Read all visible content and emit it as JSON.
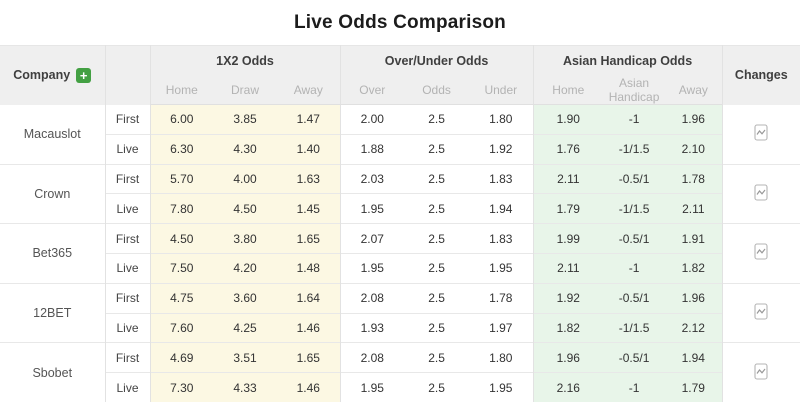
{
  "title": "Live Odds Comparison",
  "table": {
    "company_header": "Company",
    "add_button_label": "+",
    "changes_header": "Changes",
    "groups": [
      {
        "label": "1X2 Odds",
        "subs": [
          "Home",
          "Draw",
          "Away"
        ]
      },
      {
        "label": "Over/Under Odds",
        "subs": [
          "Over",
          "Odds",
          "Under"
        ]
      },
      {
        "label": "Asian Handicap Odds",
        "subs": [
          "Home",
          "Asian Handicap",
          "Away"
        ]
      }
    ],
    "changes_icon": "trend-chart-icon",
    "companies": [
      {
        "name": "Macauslot",
        "rows": [
          {
            "type": "First",
            "x12": [
              "6.00",
              "3.85",
              "1.47"
            ],
            "ou": [
              "2.00",
              "2.5",
              "1.80"
            ],
            "ah": [
              "1.90",
              "-1",
              "1.96"
            ]
          },
          {
            "type": "Live",
            "x12": [
              "6.30",
              "4.30",
              "1.40"
            ],
            "ou": [
              "1.88",
              "2.5",
              "1.92"
            ],
            "ah": [
              "1.76",
              "-1/1.5",
              "2.10"
            ]
          }
        ]
      },
      {
        "name": "Crown",
        "rows": [
          {
            "type": "First",
            "x12": [
              "5.70",
              "4.00",
              "1.63"
            ],
            "ou": [
              "2.03",
              "2.5",
              "1.83"
            ],
            "ah": [
              "2.11",
              "-0.5/1",
              "1.78"
            ]
          },
          {
            "type": "Live",
            "x12": [
              "7.80",
              "4.50",
              "1.45"
            ],
            "ou": [
              "1.95",
              "2.5",
              "1.94"
            ],
            "ah": [
              "1.79",
              "-1/1.5",
              "2.11"
            ]
          }
        ]
      },
      {
        "name": "Bet365",
        "rows": [
          {
            "type": "First",
            "x12": [
              "4.50",
              "3.80",
              "1.65"
            ],
            "ou": [
              "2.07",
              "2.5",
              "1.83"
            ],
            "ah": [
              "1.99",
              "-0.5/1",
              "1.91"
            ]
          },
          {
            "type": "Live",
            "x12": [
              "7.50",
              "4.20",
              "1.48"
            ],
            "ou": [
              "1.95",
              "2.5",
              "1.95"
            ],
            "ah": [
              "2.11",
              "-1",
              "1.82"
            ]
          }
        ]
      },
      {
        "name": "12BET",
        "rows": [
          {
            "type": "First",
            "x12": [
              "4.75",
              "3.60",
              "1.64"
            ],
            "ou": [
              "2.08",
              "2.5",
              "1.78"
            ],
            "ah": [
              "1.92",
              "-0.5/1",
              "1.96"
            ]
          },
          {
            "type": "Live",
            "x12": [
              "7.60",
              "4.25",
              "1.46"
            ],
            "ou": [
              "1.93",
              "2.5",
              "1.97"
            ],
            "ah": [
              "1.82",
              "-1/1.5",
              "2.12"
            ]
          }
        ]
      },
      {
        "name": "Sbobet",
        "rows": [
          {
            "type": "First",
            "x12": [
              "4.69",
              "3.51",
              "1.65"
            ],
            "ou": [
              "2.08",
              "2.5",
              "1.80"
            ],
            "ah": [
              "1.96",
              "-0.5/1",
              "1.94"
            ]
          },
          {
            "type": "Live",
            "x12": [
              "7.30",
              "4.33",
              "1.46"
            ],
            "ou": [
              "1.95",
              "2.5",
              "1.95"
            ],
            "ah": [
              "2.16",
              "-1",
              "1.79"
            ]
          }
        ]
      }
    ]
  },
  "colors": {
    "accent_green": "#43a043",
    "x12_column_bg": "#fcf8e3",
    "asian_handicap_column_bg": "#e8f5e9",
    "header_bg": "#efefef",
    "sub_header_text": "#b3b3b3",
    "body_text": "#333333",
    "icon_gray": "#b5b5b5"
  }
}
